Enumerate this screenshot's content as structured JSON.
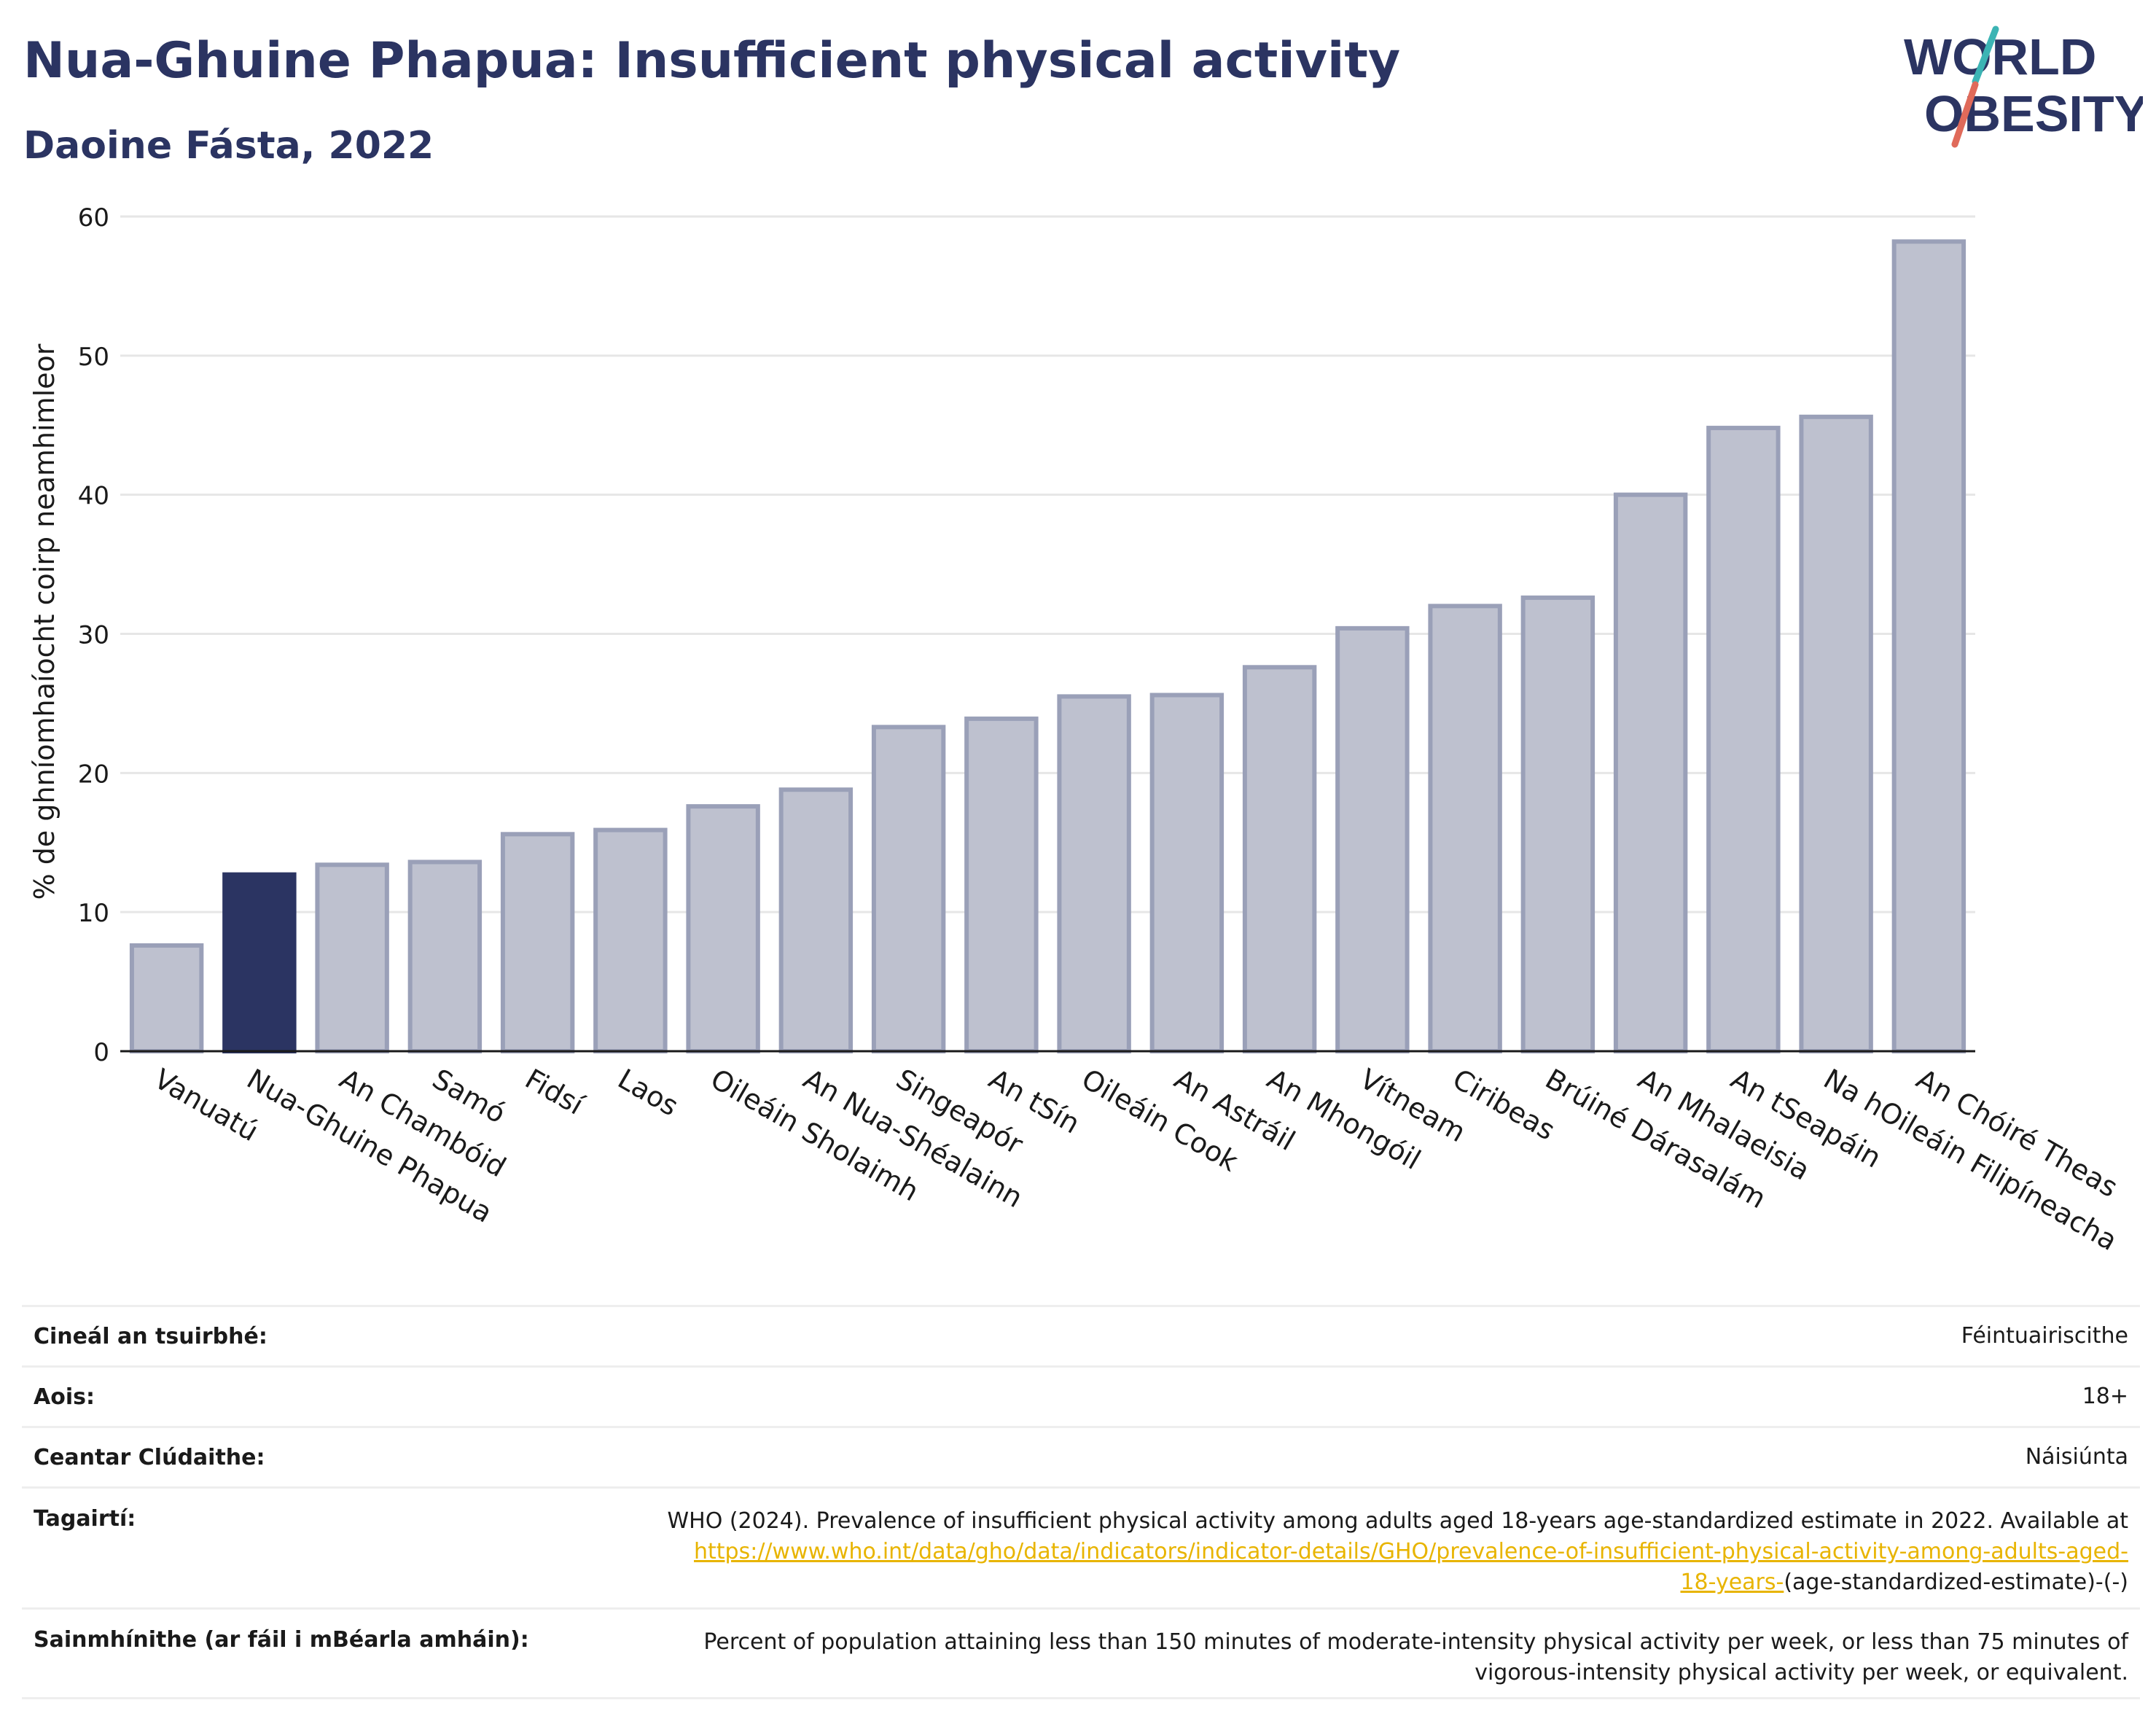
{
  "header": {
    "title": "Nua-Ghuine Phapua: Insufficient physical activity",
    "subtitle": "Daoine Fásta, 2022"
  },
  "logo": {
    "line1": "WORLD",
    "line2": "OBESITY",
    "slash_colors": [
      "#3cb4b4",
      "#e06a5a"
    ],
    "text_color": "#2b3462"
  },
  "chart_data": {
    "type": "bar",
    "title": "Nua-Ghuine Phapua: Insufficient physical activity",
    "subtitle": "Daoine Fásta, 2022",
    "ylabel": "% de ghníomhaíocht coirp neamhimleor",
    "xlabel": "",
    "ylim": [
      0,
      60
    ],
    "yticks": [
      0,
      10,
      20,
      30,
      40,
      50,
      60
    ],
    "grid": true,
    "categories": [
      "Vanuatú",
      "Nua-Ghuine Phapua",
      "An Chambóid",
      "Samó",
      "Fidsí",
      "Laos",
      "Oileáin Sholaimh",
      "An Nua-Shéalainn",
      "Singeapór",
      "An tSín",
      "Oileáin Cook",
      "An Astráil",
      "An Mhongóil",
      "Vítneam",
      "Ciribeas",
      "Brúiné Dárasalám",
      "An Mhalaeisia",
      "An tSeapáin",
      "Na hOileáin Filipíneacha",
      "An Chóiré Theas"
    ],
    "values": [
      7.6,
      12.7,
      13.4,
      13.6,
      15.6,
      15.9,
      17.6,
      18.8,
      23.3,
      23.9,
      25.5,
      25.6,
      27.6,
      30.4,
      32.0,
      32.6,
      40.0,
      44.8,
      45.6,
      58.2
    ],
    "highlight": "Nua-Ghuine Phapua",
    "colors": {
      "bar": "#bec1cf",
      "bar_edge": "#9aa0b8",
      "highlight": "#2b3462"
    }
  },
  "meta": {
    "survey_type_label": "Cineál an tsuirbhé:",
    "survey_type_value": "Féintuairiscithe",
    "age_label": "Aois:",
    "age_value": "18+",
    "area_label": "Ceantar Clúdaithe:",
    "area_value": "Náisiúnta",
    "refs_label": "Tagairtí:",
    "refs_text": "WHO (2024). Prevalence of insufficient physical activity among adults aged 18-years age-standardized estimate in 2022. Available at",
    "refs_link_1": "https://www.who.int/data/gho/data/indicators/indicator-details/GHO/prevalence-of-insufficient-physical-activity-among-adults-aged-",
    "refs_link_2": "18-years-",
    "refs_tail": "(age-standardized-estimate)-(-)",
    "def_label": "Sainmhínithe (ar fáil i mBéarla amháin):",
    "def_line1": "Percent of population attaining less than 150 minutes of moderate-intensity physical activity per week, or less than 75 minutes of",
    "def_line2": "vigorous-intensity physical activity per week, or equivalent."
  }
}
